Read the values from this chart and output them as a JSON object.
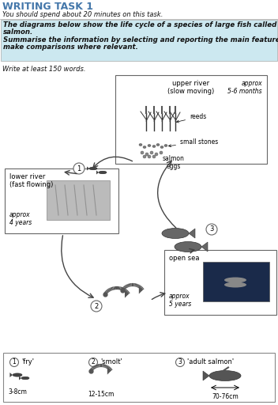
{
  "title": "WRITING TASK 1",
  "subtitle": "You should spend about 20 minutes on this task.",
  "task_line1": "The diagrams below show the life cycle of a species of large fish called the",
  "task_line2": "salmon.",
  "task_line3": "Summarise the information by selecting and reporting the main features, and",
  "task_line4": "make comparisons where relevant.",
  "write_note": "Write at least 150 words.",
  "upper_river_title": "upper river\n(slow moving)",
  "upper_river_time": "approx\n5-6 months",
  "lower_river_title": "lower river\n(fast flowing)",
  "lower_river_time": "approx\n4 years",
  "open_sea_title": "open sea",
  "open_sea_time": "approx\n5 years",
  "reeds_label": "reeds",
  "small_stones_label": "small stones",
  "salmon_eggs_label": "salmon\neggs",
  "legend_1_num": "1",
  "legend_1_name": "'fry'",
  "legend_1_size": "3-8cm",
  "legend_2_num": "2",
  "legend_2_name": "'smolt'",
  "legend_2_size": "12-15cm",
  "legend_3_num": "3",
  "legend_3_name": "'adult salmon'",
  "legend_3_size": "70-76cm",
  "header_bg": "#cce8f0",
  "box_edge": "#666666",
  "arrow_color": "#444444",
  "fish_color": "#555555",
  "text_blue": "#4477aa",
  "text_dark": "#111111"
}
